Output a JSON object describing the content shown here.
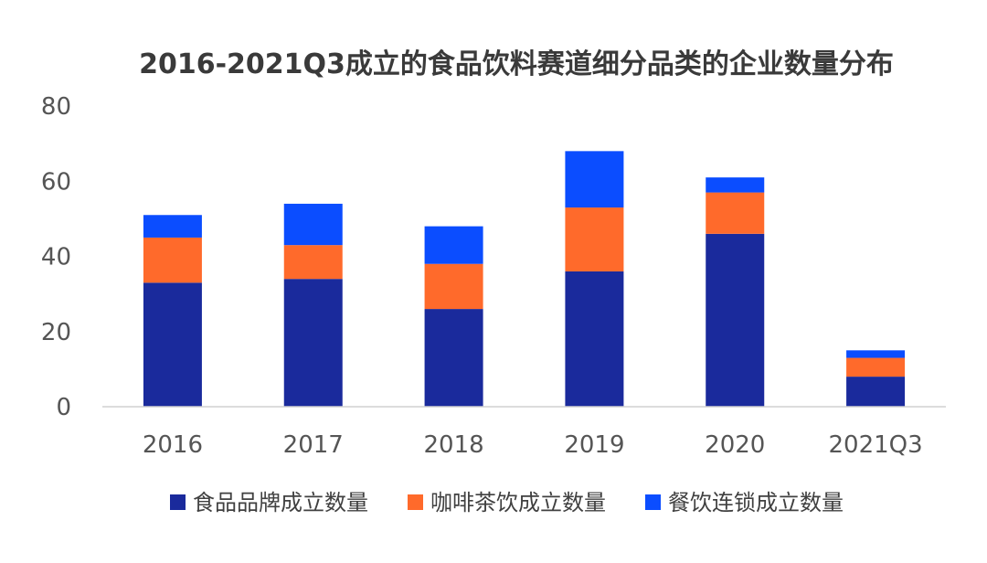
{
  "chart_data": {
    "type": "bar",
    "stacked": true,
    "title": "2016-2021Q3成立的食品饮料赛道细分品类的企业数量分布",
    "categories": [
      "2016",
      "2017",
      "2018",
      "2019",
      "2020",
      "2021Q3"
    ],
    "ylim": [
      0,
      80
    ],
    "yticks": [
      0,
      20,
      40,
      60,
      80
    ],
    "grid": false,
    "legend_position": "bottom",
    "series": [
      {
        "name": "食品品牌成立数量",
        "color": "#1a2a9c",
        "values": [
          33,
          34,
          26,
          36,
          46,
          8
        ]
      },
      {
        "name": "咖啡茶饮成立数量",
        "color": "#ff6a2b",
        "values": [
          12,
          9,
          12,
          17,
          11,
          5
        ]
      },
      {
        "name": "餐饮连锁成立数量",
        "color": "#0b4dff",
        "values": [
          6,
          11,
          10,
          15,
          4,
          2
        ]
      }
    ]
  }
}
